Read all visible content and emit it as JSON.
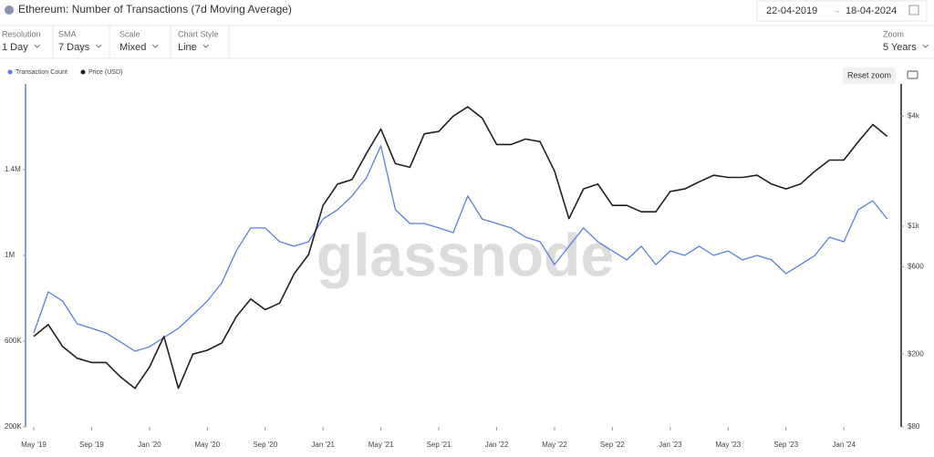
{
  "header": {
    "title": "Ethereum: Number of Transactions (7d Moving Average)",
    "date_from": "22-04-2019",
    "date_to": "18-04-2024"
  },
  "controls": [
    {
      "label": "Resolution",
      "value": "1 Day"
    },
    {
      "label": "SMA",
      "value": "7 Days"
    },
    {
      "label": "Scale",
      "value": "Mixed"
    },
    {
      "label": "Chart Style",
      "value": "Line"
    },
    {
      "label": "Zoom",
      "value": "5 Years"
    }
  ],
  "reset_zoom": "Reset zoom",
  "watermark": "glassnode",
  "chart_data": {
    "type": "line",
    "x": [
      "2019-05",
      "2019-06",
      "2019-07",
      "2019-08",
      "2019-09",
      "2019-10",
      "2019-11",
      "2019-12",
      "2020-01",
      "2020-02",
      "2020-03",
      "2020-04",
      "2020-05",
      "2020-06",
      "2020-07",
      "2020-08",
      "2020-09",
      "2020-10",
      "2020-11",
      "2020-12",
      "2021-01",
      "2021-02",
      "2021-03",
      "2021-04",
      "2021-05",
      "2021-06",
      "2021-07",
      "2021-08",
      "2021-09",
      "2021-10",
      "2021-11",
      "2021-12",
      "2022-01",
      "2022-02",
      "2022-03",
      "2022-04",
      "2022-05",
      "2022-06",
      "2022-07",
      "2022-08",
      "2022-09",
      "2022-10",
      "2022-11",
      "2022-12",
      "2023-01",
      "2023-02",
      "2023-03",
      "2023-04",
      "2023-05",
      "2023-06",
      "2023-07",
      "2023-08",
      "2023-09",
      "2023-10",
      "2023-11",
      "2023-12",
      "2024-01",
      "2024-02",
      "2024-03",
      "2024-04"
    ],
    "series": [
      {
        "name": "Transaction Count",
        "color": "#5b7fe0",
        "axis": "y",
        "values": [
          638000,
          830000,
          787000,
          681000,
          660000,
          638000,
          596000,
          553000,
          574000,
          617000,
          660000,
          723000,
          787000,
          872000,
          1021000,
          1128000,
          1128000,
          1064000,
          1043000,
          1064000,
          1170000,
          1213000,
          1277000,
          1362000,
          1511000,
          1213000,
          1149000,
          1149000,
          1128000,
          1106000,
          1277000,
          1170000,
          1149000,
          1128000,
          1085000,
          1064000,
          957000,
          1043000,
          1128000,
          1064000,
          1021000,
          979000,
          1043000,
          957000,
          1021000,
          1000000,
          1043000,
          1000000,
          1021000,
          979000,
          1000000,
          979000,
          915000,
          957000,
          1000000,
          1085000,
          1064000,
          1213000,
          1255000,
          1170000
        ]
      },
      {
        "name": "Price (USD)",
        "color": "#1f1f1f",
        "axis": "y2",
        "values": [
          250,
          290,
          220,
          190,
          180,
          180,
          150,
          130,
          170,
          250,
          130,
          200,
          210,
          230,
          320,
          400,
          350,
          380,
          550,
          700,
          1300,
          1700,
          1800,
          2500,
          3400,
          2200,
          2100,
          3200,
          3300,
          4000,
          4500,
          3900,
          2800,
          2800,
          3000,
          2900,
          2000,
          1100,
          1600,
          1700,
          1300,
          1300,
          1200,
          1200,
          1550,
          1600,
          1750,
          1900,
          1850,
          1850,
          1900,
          1700,
          1600,
          1700,
          2000,
          2300,
          2300,
          2900,
          3600,
          3100
        ]
      }
    ],
    "ylim": [
      200000,
      1800000
    ],
    "yticks": [
      {
        "value": 200000,
        "label": "200K"
      },
      {
        "value": 600000,
        "label": "600K"
      },
      {
        "value": 1000000,
        "label": "1M"
      },
      {
        "value": 1400000,
        "label": "1.4M"
      }
    ],
    "y2lim": [
      80,
      6000
    ],
    "y2log": true,
    "y2ticks": [
      {
        "value": 80,
        "label": "$80"
      },
      {
        "value": 200,
        "label": "$200"
      },
      {
        "value": 600,
        "label": "$600"
      },
      {
        "value": 1000,
        "label": "$1k"
      },
      {
        "value": 4000,
        "label": "$4k"
      }
    ],
    "xticks": [
      {
        "value": "2019-05",
        "label": "May '19"
      },
      {
        "value": "2019-09",
        "label": "Sep '19"
      },
      {
        "value": "2020-01",
        "label": "Jan '20"
      },
      {
        "value": "2020-05",
        "label": "May '20"
      },
      {
        "value": "2020-09",
        "label": "Sep '20"
      },
      {
        "value": "2021-01",
        "label": "Jan '21"
      },
      {
        "value": "2021-05",
        "label": "May '21"
      },
      {
        "value": "2021-09",
        "label": "Sep '21"
      },
      {
        "value": "2022-01",
        "label": "Jan '22"
      },
      {
        "value": "2022-05",
        "label": "May '22"
      },
      {
        "value": "2022-09",
        "label": "Sep '22"
      },
      {
        "value": "2023-01",
        "label": "Jan '23"
      },
      {
        "value": "2023-05",
        "label": "May '23"
      },
      {
        "value": "2023-09",
        "label": "Sep '23"
      },
      {
        "value": "2024-01",
        "label": "Jan '24"
      }
    ],
    "legend": "top-left"
  }
}
